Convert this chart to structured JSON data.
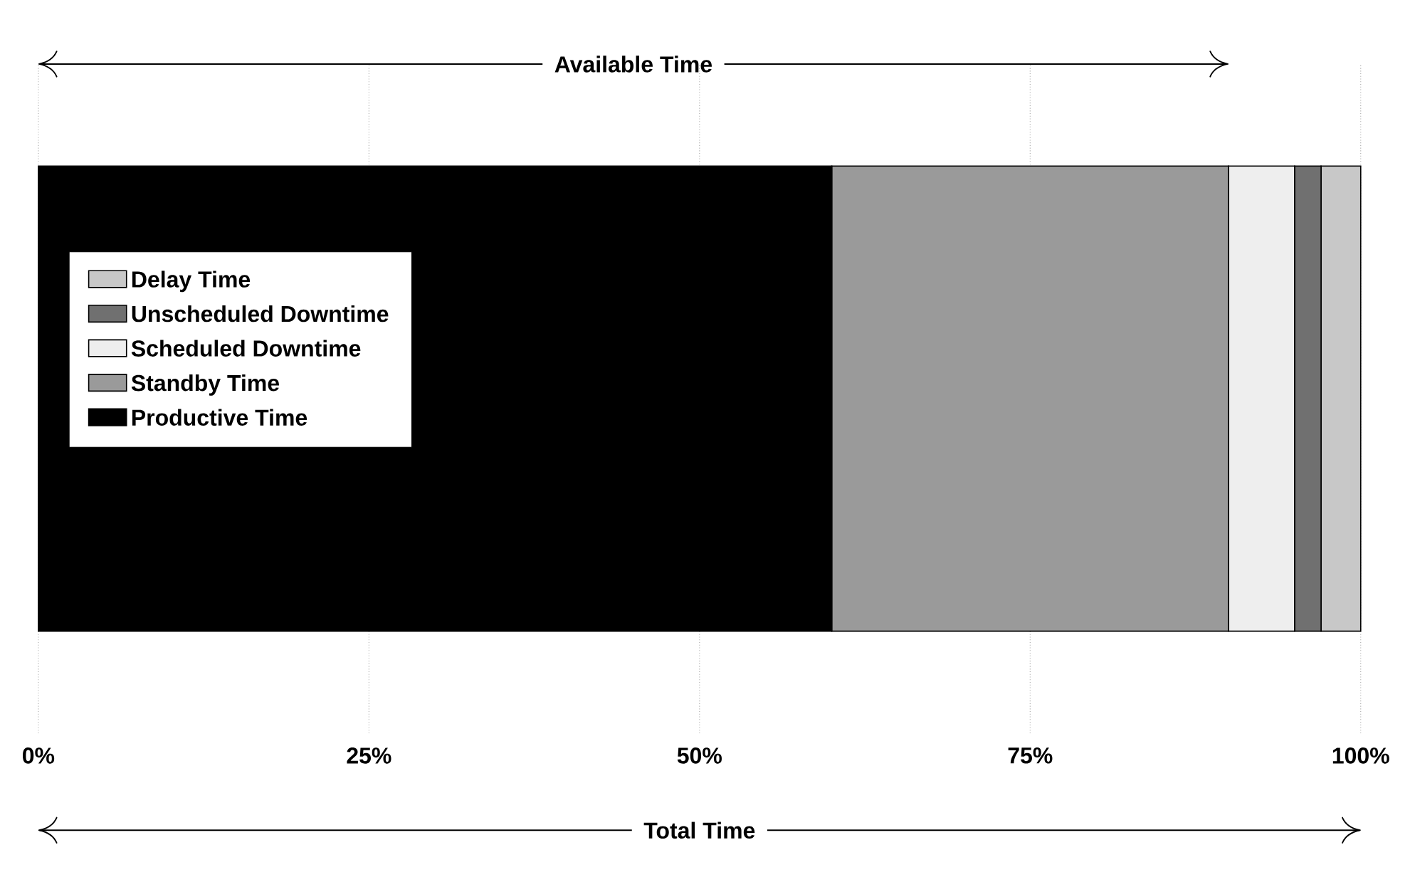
{
  "chart_data": {
    "type": "bar",
    "orientation": "horizontal",
    "stacked": true,
    "categories": [
      null
    ],
    "series": [
      {
        "name": "Productive Time",
        "color": "#000000",
        "values": [
          60
        ]
      },
      {
        "name": "Standby Time",
        "color": "#9a9a9a",
        "values": [
          30
        ]
      },
      {
        "name": "Scheduled Downtime",
        "color": "#eeeeee",
        "values": [
          5
        ]
      },
      {
        "name": "Unscheduled Downtime",
        "color": "#707070",
        "values": [
          2
        ]
      },
      {
        "name": "Delay Time",
        "color": "#c8c8c8",
        "values": [
          3
        ]
      }
    ],
    "xlim": [
      0,
      100
    ],
    "xticks": [
      {
        "value": 0,
        "label": "0%"
      },
      {
        "value": 25,
        "label": "25%"
      },
      {
        "value": 50,
        "label": "50%"
      },
      {
        "value": 75,
        "label": "75%"
      },
      {
        "value": 100,
        "label": "100%"
      }
    ],
    "grid": "x",
    "legend": "left",
    "tick_labels": "x",
    "annotations": [
      "Available Time",
      "Total Time"
    ]
  }
}
